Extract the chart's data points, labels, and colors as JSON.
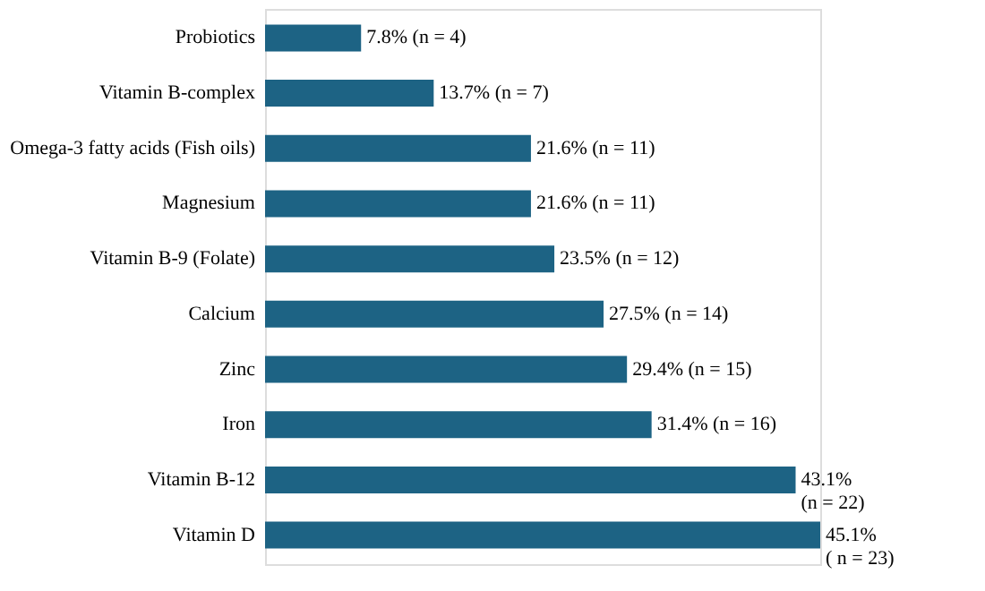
{
  "chart_data": {
    "type": "bar",
    "orientation": "horizontal",
    "color": "#1d6384",
    "categories": [
      "Probiotics",
      "Vitamin B-complex",
      "Omega-3 fatty acids (Fish oils)",
      "Magnesium",
      "Vitamin B-9 (Folate)",
      "Calcium",
      "Zinc",
      "Iron",
      "Vitamin B-12",
      "Vitamin D"
    ],
    "values": [
      7.8,
      13.7,
      21.6,
      21.6,
      23.5,
      27.5,
      29.4,
      31.4,
      43.1,
      45.1
    ],
    "value_labels": [
      "7.8% (n = 4)",
      "13.7% (n = 7)",
      "21.6% (n = 11)",
      "21.6% (n = 11)",
      "23.5% (n = 12)",
      "27.5% (n = 14)",
      "29.4% (n = 15)",
      "31.4% (n = 16)",
      "43.1% (n = 22)",
      "45.1% ( n = 23)"
    ],
    "data_labels": false
  }
}
